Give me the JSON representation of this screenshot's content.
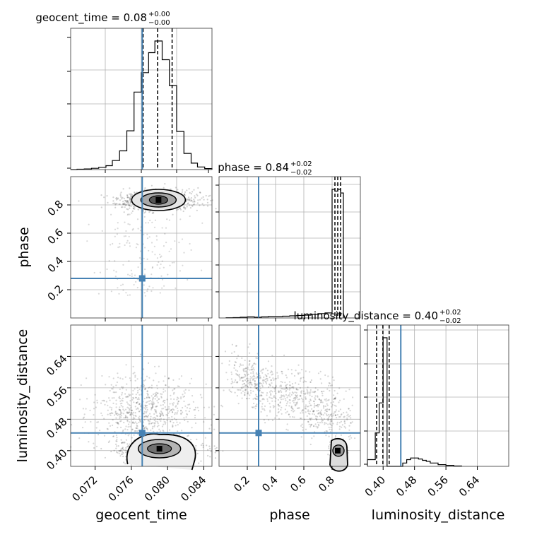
{
  "chart_data": {
    "type": "corner",
    "truth_color": "#4682b4",
    "parameters": [
      "geocent_time",
      "phase",
      "luminosity_distance"
    ],
    "truths": {
      "geocent_time": 0.0772,
      "phase": 0.28,
      "luminosity_distance": 0.445
    },
    "panels": {
      "geocent_time_hist": {
        "type": "histogram",
        "title_name": "geocent_time = 0.08",
        "title_plus": "+0.00",
        "title_minus": "−0.00",
        "xlim": [
          0.0693,
          0.0849
        ],
        "bins": [
          0.0693,
          0.07,
          0.0708,
          0.0716,
          0.0724,
          0.0732,
          0.0739,
          0.0747,
          0.0755,
          0.0763,
          0.0771,
          0.0779,
          0.0786,
          0.0794,
          0.0802,
          0.081,
          0.0818,
          0.0826,
          0.0833,
          0.0841,
          0.0849
        ],
        "counts": [
          0,
          1,
          2,
          4,
          7,
          12,
          28,
          58,
          120,
          240,
          300,
          362,
          398,
          340,
          260,
          118,
          50,
          20,
          8,
          3
        ],
        "quantiles": [
          0.0773,
          0.0789,
          0.0805
        ],
        "y_ticks": [
          "",
          "",
          "",
          ""
        ]
      },
      "phase_hist": {
        "type": "histogram",
        "title_name": "phase = 0.84",
        "title_plus": "+0.02",
        "title_minus": "−0.02",
        "xlim": [
          0.0,
          1.0
        ],
        "bins": [
          0.05,
          0.1,
          0.15,
          0.2,
          0.25,
          0.3,
          0.35,
          0.4,
          0.45,
          0.5,
          0.55,
          0.6,
          0.65,
          0.7,
          0.75,
          0.8,
          0.82,
          0.84,
          0.86,
          0.88
        ],
        "counts": [
          0.5,
          1,
          2,
          3,
          2,
          3,
          4,
          4,
          5,
          6,
          7,
          8,
          10,
          12,
          14,
          360,
          355,
          360,
          350
        ],
        "quantiles": [
          0.82,
          0.84,
          0.86
        ],
        "y_ticks": [
          "",
          "",
          "",
          ""
        ]
      },
      "luminosity_distance_hist": {
        "type": "histogram",
        "title_name": "luminosity_distance = 0.40",
        "title_plus": "+0.02",
        "title_minus": "−0.02",
        "xlim": [
          0.36,
          0.72
        ],
        "bins": [
          0.36,
          0.38,
          0.39,
          0.4,
          0.41,
          0.42,
          0.43,
          0.44,
          0.45,
          0.46,
          0.47,
          0.48,
          0.49,
          0.5,
          0.51,
          0.52,
          0.54,
          0.56,
          0.58,
          0.6
        ],
        "counts": [
          20,
          100,
          190,
          385,
          0,
          0,
          0,
          0,
          10,
          20,
          25,
          25,
          22,
          18,
          15,
          10,
          5,
          3,
          1
        ],
        "quantiles": [
          0.3834,
          0.3994,
          0.4154
        ],
        "x_ticks": [
          "0.40",
          "0.48",
          "0.56",
          "0.64"
        ],
        "x_tick_values": [
          0.4,
          0.48,
          0.56,
          0.64
        ],
        "xlabel": "luminosity_distance"
      },
      "phase_vs_geocent_time": {
        "type": "scatter-contour",
        "xlim": [
          0.0693,
          0.0849
        ],
        "ylim": [
          0.0,
          1.0
        ],
        "ylabel": "phase",
        "y_ticks": [
          "0.2",
          "0.4",
          "0.6",
          "0.8"
        ],
        "y_tick_values": [
          0.2,
          0.4,
          0.6,
          0.8
        ]
      },
      "luminosity_distance_vs_geocent_time": {
        "type": "scatter-contour",
        "xlim": [
          0.0693,
          0.0849
        ],
        "ylim": [
          0.36,
          0.72
        ],
        "ylabel": "luminosity_distance",
        "xlabel": "geocent_time",
        "x_ticks": [
          "0.072",
          "0.076",
          "0.080",
          "0.084"
        ],
        "x_tick_values": [
          0.072,
          0.076,
          0.08,
          0.084
        ],
        "y_ticks": [
          "0.40",
          "0.48",
          "0.56",
          "0.64"
        ],
        "y_tick_values": [
          0.4,
          0.48,
          0.56,
          0.64
        ]
      },
      "luminosity_distance_vs_phase": {
        "type": "scatter-contour",
        "xlim": [
          0.0,
          1.0
        ],
        "ylim": [
          0.36,
          0.72
        ],
        "xlabel": "phase",
        "x_ticks": [
          "0.2",
          "0.4",
          "0.6",
          "0.8"
        ],
        "x_tick_values": [
          0.2,
          0.4,
          0.6,
          0.8
        ]
      }
    }
  }
}
